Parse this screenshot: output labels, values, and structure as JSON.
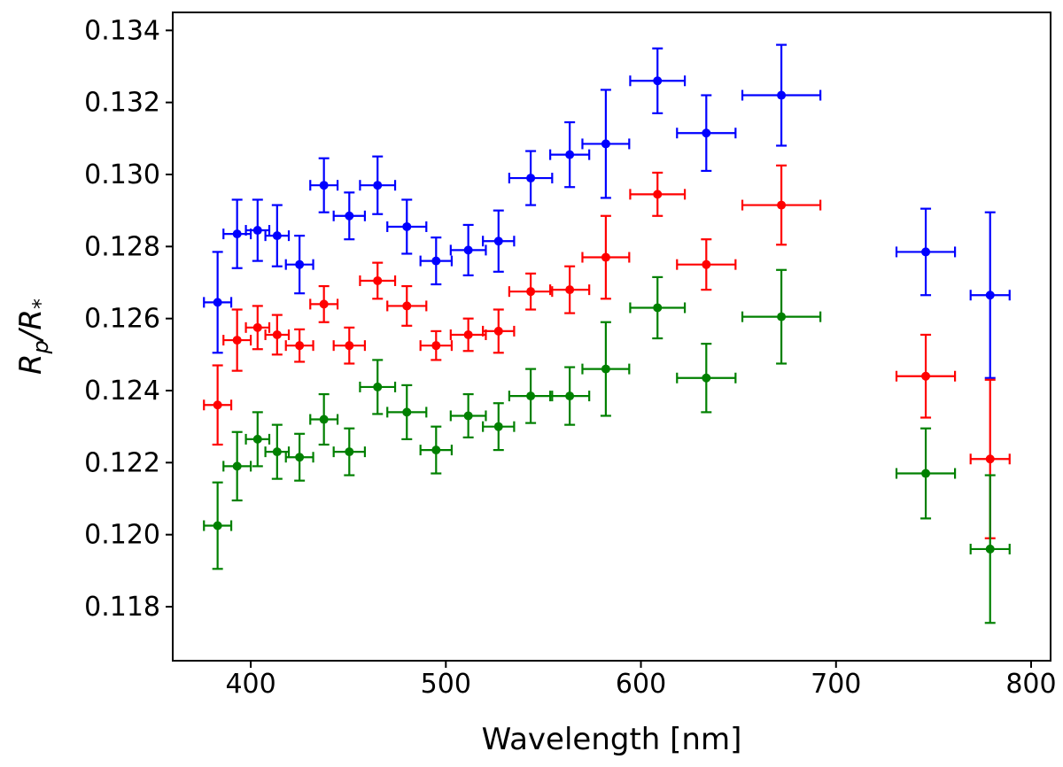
{
  "chart_data": {
    "type": "scatter",
    "title": "",
    "xlabel": "Wavelength [nm]",
    "ylabel": "Rp/R*",
    "ylabel_main": "R",
    "ylabel_sub": "p",
    "ylabel_slash": "/R",
    "ylabel_star": "*",
    "xlim": [
      360,
      810
    ],
    "ylim": [
      0.1165,
      0.1345
    ],
    "xticks": [
      400,
      500,
      600,
      700,
      800
    ],
    "yticks": [
      0.118,
      0.12,
      0.122,
      0.124,
      0.126,
      0.128,
      0.13,
      0.132,
      0.134
    ],
    "grid": false,
    "x": [
      383,
      393,
      403.5,
      413.5,
      425,
      437.5,
      450.5,
      465,
      480,
      495,
      511.5,
      527,
      543.5,
      563.5,
      582,
      608.5,
      633.5,
      672,
      746,
      779
    ],
    "xerr": [
      7,
      7,
      6,
      6,
      7,
      7,
      8,
      9,
      10,
      8,
      9,
      8,
      11,
      10,
      12,
      14,
      15,
      20,
      15,
      10
    ],
    "series": [
      {
        "name": "blue",
        "color": "#0000ff",
        "values": [
          0.12645,
          0.12835,
          0.12845,
          0.1283,
          0.1275,
          0.1297,
          0.12885,
          0.1297,
          0.12855,
          0.1276,
          0.1279,
          0.12815,
          0.1299,
          0.13055,
          0.13085,
          0.1326,
          0.13115,
          0.1322,
          0.12785,
          0.12665
        ],
        "yerr": [
          0.0014,
          0.00095,
          0.00085,
          0.00085,
          0.0008,
          0.00075,
          0.00065,
          0.0008,
          0.00075,
          0.00065,
          0.0007,
          0.00085,
          0.00075,
          0.0009,
          0.0015,
          0.0009,
          0.00105,
          0.0014,
          0.0012,
          0.0023
        ]
      },
      {
        "name": "red",
        "color": "#ff0000",
        "values": [
          0.1236,
          0.1254,
          0.12575,
          0.12555,
          0.12525,
          0.1264,
          0.12525,
          0.12705,
          0.12635,
          0.12525,
          0.12555,
          0.12565,
          0.12675,
          0.1268,
          0.1277,
          0.12945,
          0.1275,
          0.12915,
          0.1244,
          0.1221
        ],
        "yerr": [
          0.0011,
          0.00085,
          0.0006,
          0.00055,
          0.00045,
          0.0005,
          0.0005,
          0.0005,
          0.00055,
          0.0004,
          0.00045,
          0.0006,
          0.0005,
          0.00065,
          0.00115,
          0.0006,
          0.0007,
          0.0011,
          0.00115,
          0.0022
        ]
      },
      {
        "name": "green",
        "color": "#008000",
        "values": [
          0.12025,
          0.1219,
          0.12265,
          0.1223,
          0.12215,
          0.1232,
          0.1223,
          0.1241,
          0.1234,
          0.12235,
          0.1233,
          0.123,
          0.12385,
          0.12385,
          0.1246,
          0.1263,
          0.12435,
          0.12605,
          0.1217,
          0.1196
        ],
        "yerr": [
          0.0012,
          0.00095,
          0.00075,
          0.00075,
          0.00065,
          0.0007,
          0.00065,
          0.00075,
          0.00075,
          0.00065,
          0.0006,
          0.00065,
          0.00075,
          0.0008,
          0.0013,
          0.00085,
          0.00095,
          0.0013,
          0.00125,
          0.00205
        ]
      }
    ]
  }
}
